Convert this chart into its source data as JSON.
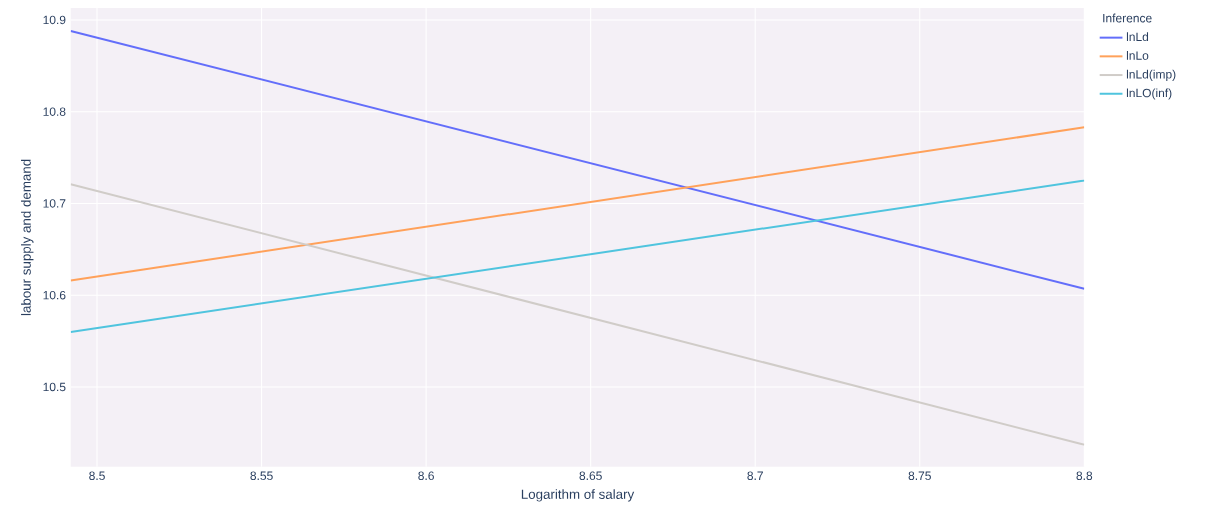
{
  "chart_data": {
    "type": "line",
    "xlabel": "Logarithm of salary",
    "ylabel": "labour supply and demand",
    "legend_title": "Inference",
    "x": [
      8.492,
      8.8
    ],
    "series": [
      {
        "name": "lnLd",
        "color": "#636efa",
        "values": [
          10.888,
          10.607
        ]
      },
      {
        "name": "lnLo",
        "color": "#ffa15a",
        "values": [
          10.616,
          10.783
        ]
      },
      {
        "name": "lnLd(imp)",
        "color": "#d0ccc8",
        "values": [
          10.721,
          10.437
        ]
      },
      {
        "name": "lnLO(inf)",
        "color": "#4fc4de",
        "values": [
          10.56,
          10.725
        ]
      }
    ],
    "xlim": [
      8.492,
      8.8
    ],
    "ylim": [
      10.413,
      10.913
    ],
    "xticks": [
      8.5,
      8.55,
      8.6,
      8.65,
      8.7,
      8.75,
      8.8
    ],
    "yticks": [
      10.5,
      10.6,
      10.7,
      10.8,
      10.9
    ],
    "grid": true,
    "legend": "top right",
    "marker": "none",
    "line_style": "solid"
  }
}
